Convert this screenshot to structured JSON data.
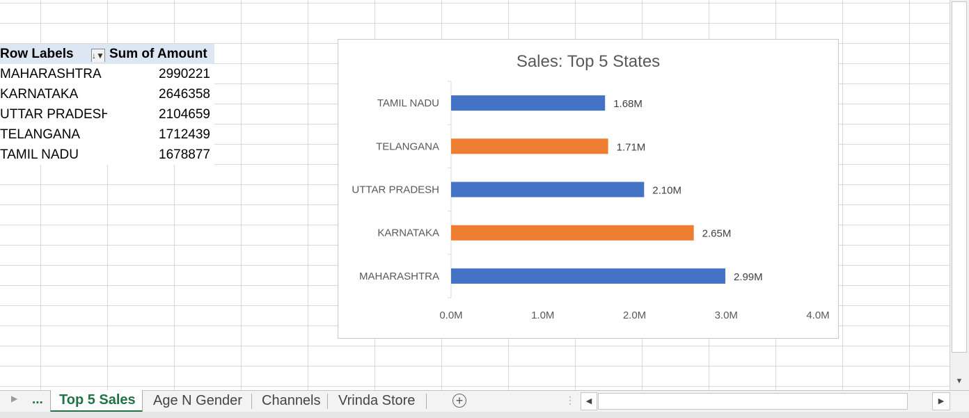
{
  "pivot": {
    "header": {
      "row_labels": "Row Labels",
      "sum_label": "Sum of Amount"
    },
    "rows": [
      {
        "label": "MAHARASHTRA",
        "value": "2990221"
      },
      {
        "label": "KARNATAKA",
        "value": "2646358"
      },
      {
        "label": "UTTAR PRADESH",
        "value": "2104659"
      },
      {
        "label": "TELANGANA",
        "value": "1712439"
      },
      {
        "label": "TAMIL NADU",
        "value": "1678877"
      }
    ]
  },
  "chart_data": {
    "type": "bar",
    "orientation": "horizontal",
    "title": "Sales: Top 5 States",
    "categories": [
      "TAMIL NADU",
      "TELANGANA",
      "UTTAR PRADESH",
      "KARNATAKA",
      "MAHARASHTRA"
    ],
    "values": [
      1678877,
      1712439,
      2104659,
      2646358,
      2990221
    ],
    "data_labels": [
      "1.68M",
      "1.71M",
      "2.10M",
      "2.65M",
      "2.99M"
    ],
    "bar_colors": [
      "#4472c4",
      "#ed7d31",
      "#4472c4",
      "#ed7d31",
      "#4472c4"
    ],
    "x_ticks": [
      "0.0M",
      "1.0M",
      "2.0M",
      "3.0M",
      "4.0M"
    ],
    "xlim": [
      0,
      4000000
    ],
    "grid": false,
    "legend": "none",
    "xlabel": "",
    "ylabel": ""
  },
  "tabs": {
    "ellipsis": "...",
    "items": [
      {
        "label": "Top 5 Sales",
        "active": true
      },
      {
        "label": "Age N Gender",
        "active": false
      },
      {
        "label": "Channels",
        "active": false
      },
      {
        "label": "Vrinda Store",
        "active": false
      }
    ],
    "add_icon": "plus-circle-icon"
  },
  "colors": {
    "accent": "#217346",
    "pivot_header": "#dde6f3"
  }
}
